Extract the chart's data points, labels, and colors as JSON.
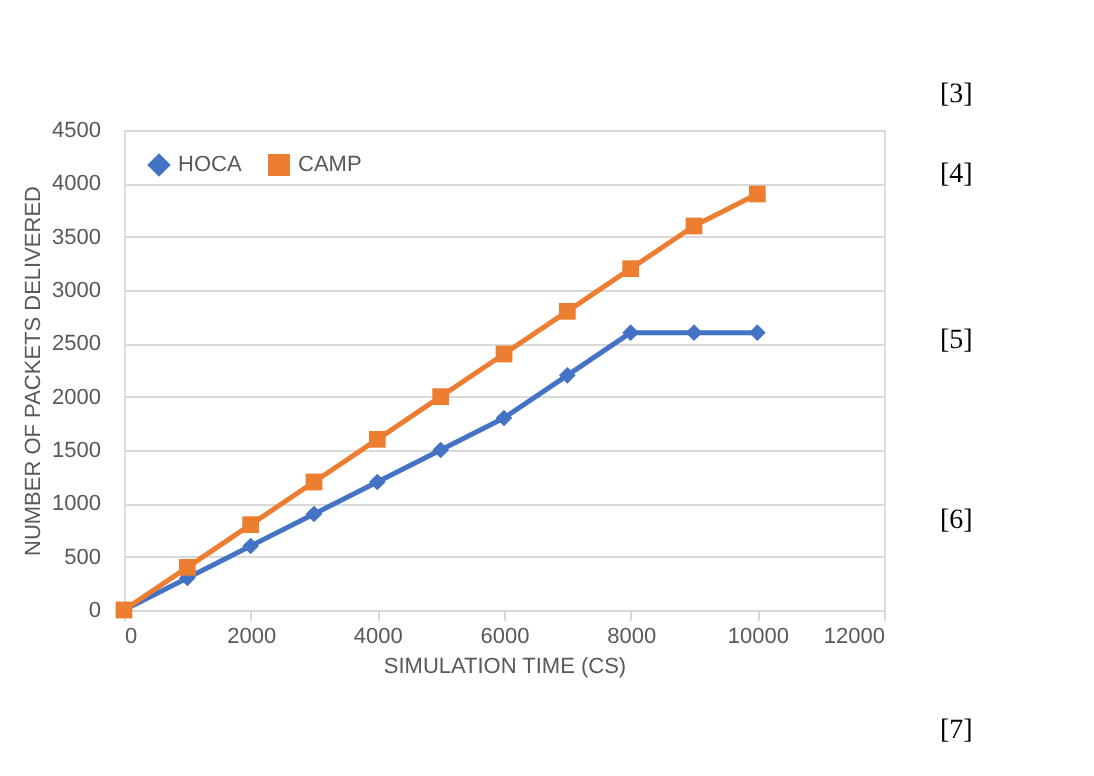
{
  "chart_data": {
    "type": "line",
    "xlabel": "SIMULATION TIME (CS)",
    "ylabel": "NUMBER OF PACKETS DELIVERED",
    "x": [
      0,
      1000,
      2000,
      3000,
      4000,
      5000,
      6000,
      7000,
      8000,
      9000,
      10000
    ],
    "series": [
      {
        "name": "HOCA",
        "color": "#4472c4",
        "marker": "diamond",
        "values": [
          0,
          300,
          600,
          900,
          1200,
          1500,
          1800,
          2200,
          2600,
          2600,
          2600
        ]
      },
      {
        "name": "CAMP",
        "color": "#ed7d31",
        "marker": "square",
        "values": [
          0,
          400,
          800,
          1200,
          1600,
          2000,
          2400,
          2800,
          3200,
          3600,
          3900
        ]
      }
    ],
    "xlim": [
      0,
      12000
    ],
    "xticks": [
      0,
      2000,
      4000,
      6000,
      8000,
      10000,
      12000
    ],
    "ylim": [
      0,
      4500
    ],
    "yticks": [
      0,
      500,
      1000,
      1500,
      2000,
      2500,
      3000,
      3500,
      4000,
      4500
    ],
    "grid": "y",
    "legend": "top left",
    "line_style": "solid",
    "annotations": [
      "[3]",
      "[4]",
      "[5]",
      "[6]",
      "[7]"
    ]
  }
}
